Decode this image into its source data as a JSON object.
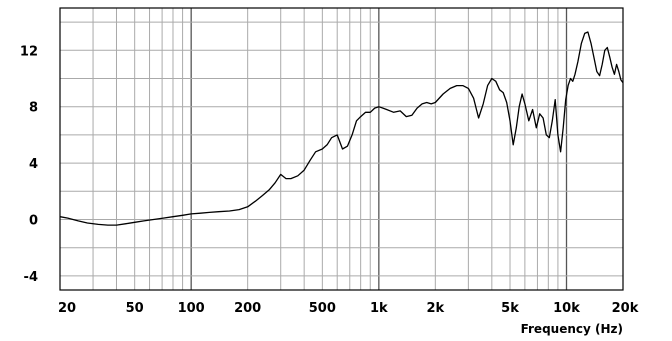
{
  "chart_data": {
    "type": "line",
    "title": "",
    "xlabel": "Frequency  (Hz)",
    "ylabel": "",
    "x_scale": "log",
    "xlim": [
      20,
      20000
    ],
    "ylim": [
      -5,
      15
    ],
    "grid": true,
    "y_ticks": [
      {
        "value": 12,
        "label": "12"
      },
      {
        "value": 8,
        "label": "8"
      },
      {
        "value": 4,
        "label": "4"
      },
      {
        "value": 0,
        "label": "0"
      },
      {
        "value": -4,
        "label": "-4"
      }
    ],
    "x_ticks": [
      {
        "value": 20,
        "label": "20"
      },
      {
        "value": 50,
        "label": "50"
      },
      {
        "value": 100,
        "label": "100"
      },
      {
        "value": 200,
        "label": "200"
      },
      {
        "value": 500,
        "label": "500"
      },
      {
        "value": 1000,
        "label": "1k"
      },
      {
        "value": 2000,
        "label": "2k"
      },
      {
        "value": 5000,
        "label": "5k"
      },
      {
        "value": 10000,
        "label": "10k"
      },
      {
        "value": 20000,
        "label": "20k"
      }
    ],
    "series": [
      {
        "color": "#000000",
        "x": [
          20,
          22,
          25,
          28,
          32,
          36,
          40,
          45,
          50,
          56,
          63,
          71,
          80,
          90,
          100,
          112,
          125,
          140,
          160,
          180,
          200,
          220,
          240,
          260,
          280,
          300,
          320,
          340,
          370,
          400,
          430,
          460,
          500,
          530,
          560,
          600,
          640,
          680,
          720,
          760,
          800,
          850,
          900,
          950,
          1000,
          1100,
          1200,
          1300,
          1400,
          1500,
          1600,
          1700,
          1800,
          1900,
          2000,
          2200,
          2400,
          2600,
          2800,
          3000,
          3200,
          3400,
          3600,
          3800,
          4000,
          4200,
          4400,
          4600,
          4800,
          5000,
          5200,
          5400,
          5600,
          5800,
          6000,
          6300,
          6600,
          6900,
          7200,
          7500,
          7800,
          8100,
          8400,
          8700,
          9000,
          9300,
          9600,
          9900,
          10200,
          10500,
          10800,
          11100,
          11500,
          12000,
          12500,
          13000,
          13500,
          14000,
          14500,
          15000,
          15500,
          16000,
          16500,
          17000,
          17500,
          18000,
          18500,
          19000,
          19500,
          20000
        ],
        "y": [
          0.2,
          0.1,
          -0.1,
          -0.25,
          -0.35,
          -0.4,
          -0.4,
          -0.3,
          -0.2,
          -0.1,
          0.0,
          0.1,
          0.2,
          0.3,
          0.4,
          0.45,
          0.5,
          0.55,
          0.6,
          0.7,
          0.9,
          1.3,
          1.7,
          2.1,
          2.6,
          3.2,
          2.9,
          2.9,
          3.1,
          3.5,
          4.2,
          4.8,
          5.0,
          5.3,
          5.8,
          6.0,
          5.0,
          5.2,
          6.0,
          7.0,
          7.3,
          7.6,
          7.6,
          7.9,
          8.0,
          7.8,
          7.6,
          7.7,
          7.3,
          7.4,
          7.9,
          8.2,
          8.3,
          8.2,
          8.3,
          8.9,
          9.3,
          9.5,
          9.5,
          9.3,
          8.6,
          7.2,
          8.2,
          9.5,
          10.0,
          9.8,
          9.2,
          9.0,
          8.3,
          7.0,
          5.3,
          6.5,
          8.0,
          8.9,
          8.2,
          7.0,
          7.8,
          6.5,
          7.5,
          7.2,
          6.0,
          5.8,
          7.0,
          8.5,
          6.0,
          4.8,
          6.5,
          8.5,
          9.5,
          10.0,
          9.8,
          10.3,
          11.2,
          12.5,
          13.2,
          13.3,
          12.5,
          11.5,
          10.5,
          10.2,
          11.0,
          12.0,
          12.2,
          11.5,
          10.8,
          10.3,
          11.0,
          10.5,
          9.9,
          9.7
        ]
      }
    ]
  }
}
